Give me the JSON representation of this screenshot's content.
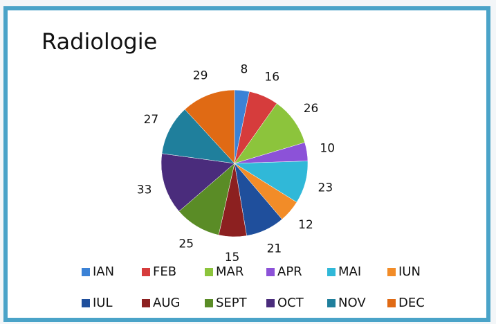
{
  "chart_data": {
    "type": "pie",
    "title": "Radiologie",
    "categories": [
      "IAN",
      "FEB",
      "MAR",
      "APR",
      "MAI",
      "IUN",
      "IUL",
      "AUG",
      "SEPT",
      "OCT",
      "NOV",
      "DEC"
    ],
    "values": [
      8,
      16,
      26,
      10,
      23,
      12,
      21,
      15,
      25,
      33,
      27,
      29
    ],
    "colors": [
      "#3b82d6",
      "#d63c3c",
      "#8cc43c",
      "#8c52d8",
      "#30b8d8",
      "#f28c28",
      "#1f4f9c",
      "#8c2020",
      "#5a8c26",
      "#4a2c7c",
      "#1f7f9c",
      "#e06a14"
    ],
    "legend": "bottom"
  }
}
